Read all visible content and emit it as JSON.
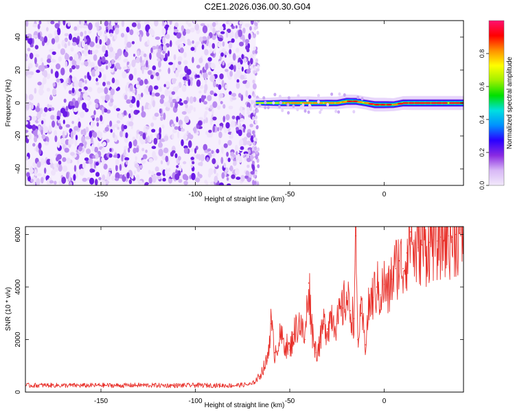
{
  "figure": {
    "title": "C2E1.2026.036.00.30.G04"
  },
  "chart_data": [
    {
      "type": "heatmap",
      "title": "",
      "xlabel": "Height of straight line (km)",
      "ylabel": "Frequency (Hz)",
      "xlim": [
        -190,
        42
      ],
      "ylim": [
        -50,
        50
      ],
      "x_ticks": [
        -150,
        -100,
        -50,
        0
      ],
      "y_ticks": [
        -40,
        -20,
        0,
        20,
        40
      ],
      "grid": false,
      "colorbar": {
        "label": "Normalized spectral amplitude",
        "range": [
          0,
          1
        ],
        "ticks": [
          0.0,
          0.2,
          0.4,
          0.6,
          0.8
        ],
        "colormap": [
          "#f2e9fb",
          "#d8b8f6",
          "#8a2be2",
          "#2a00ff",
          "#0090ff",
          "#00e0e0",
          "#00e000",
          "#a0f000",
          "#ffff00",
          "#ff9000",
          "#ff0000",
          "#ff1070"
        ]
      },
      "noise_region": {
        "x_from": -190,
        "x_to": -68,
        "y_from": -50,
        "y_to": 50,
        "amplitude": "0.0-0.2"
      },
      "signal_track": {
        "x": [
          -68,
          -65,
          -60,
          -55,
          -50,
          -45,
          -40,
          -35,
          -30,
          -25,
          -20,
          -15,
          -10,
          -5,
          0,
          5,
          10,
          15,
          20,
          25,
          30,
          35,
          42
        ],
        "frequency": [
          0,
          0,
          0,
          0,
          0,
          0,
          0,
          0,
          0,
          0,
          1,
          1,
          0,
          -1,
          -1,
          -1,
          0,
          0,
          0,
          0,
          0,
          0,
          0
        ],
        "peak_amplitude": [
          0.3,
          0.4,
          0.5,
          0.7,
          0.75,
          0.8,
          0.85,
          0.7,
          0.8,
          0.75,
          0.9,
          0.85,
          0.8,
          0.9,
          0.9,
          0.8,
          0.9,
          0.95,
          0.95,
          0.95,
          0.95,
          0.95,
          0.95
        ]
      }
    },
    {
      "type": "line",
      "title": "",
      "xlabel": "Height of straight line (km)",
      "ylabel": "SNR (10 * v/v)",
      "xlim": [
        -190,
        42
      ],
      "ylim": [
        0,
        6300
      ],
      "x_ticks": [
        -150,
        -100,
        -50,
        0
      ],
      "y_ticks": [
        0,
        2000,
        4000,
        6000
      ],
      "grid": false,
      "series": [
        {
          "color": "#e8302a",
          "x": [
            -190,
            -180,
            -170,
            -160,
            -150,
            -140,
            -130,
            -120,
            -110,
            -100,
            -90,
            -80,
            -70,
            -66,
            -62,
            -60,
            -58,
            -55,
            -52,
            -50,
            -48,
            -45,
            -42,
            -40,
            -38,
            -36,
            -34,
            -32,
            -30,
            -28,
            -25,
            -22,
            -20,
            -18,
            -16,
            -15,
            -14,
            -12,
            -10,
            -8,
            -6,
            -4,
            -2,
            0,
            2,
            4,
            6,
            8,
            10,
            12,
            14,
            16,
            18,
            20,
            22,
            24,
            26,
            28,
            30,
            32,
            34,
            36,
            38,
            40,
            42
          ],
          "values": [
            250,
            260,
            255,
            250,
            260,
            250,
            265,
            255,
            250,
            260,
            255,
            250,
            300,
            600,
            1200,
            2600,
            1500,
            2100,
            1800,
            1600,
            2200,
            2700,
            2000,
            4150,
            2300,
            1500,
            1900,
            2600,
            2400,
            3000,
            2600,
            3200,
            3600,
            3100,
            2800,
            5950,
            2000,
            3000,
            1800,
            3300,
            3600,
            4000,
            3700,
            4100,
            3700,
            4300,
            4700,
            5000,
            4700,
            5300,
            6100,
            5200,
            5500,
            5600,
            5500,
            5700,
            5800,
            5750,
            5900,
            5850,
            5950,
            5900,
            6000,
            6050,
            6050
          ]
        }
      ]
    }
  ]
}
